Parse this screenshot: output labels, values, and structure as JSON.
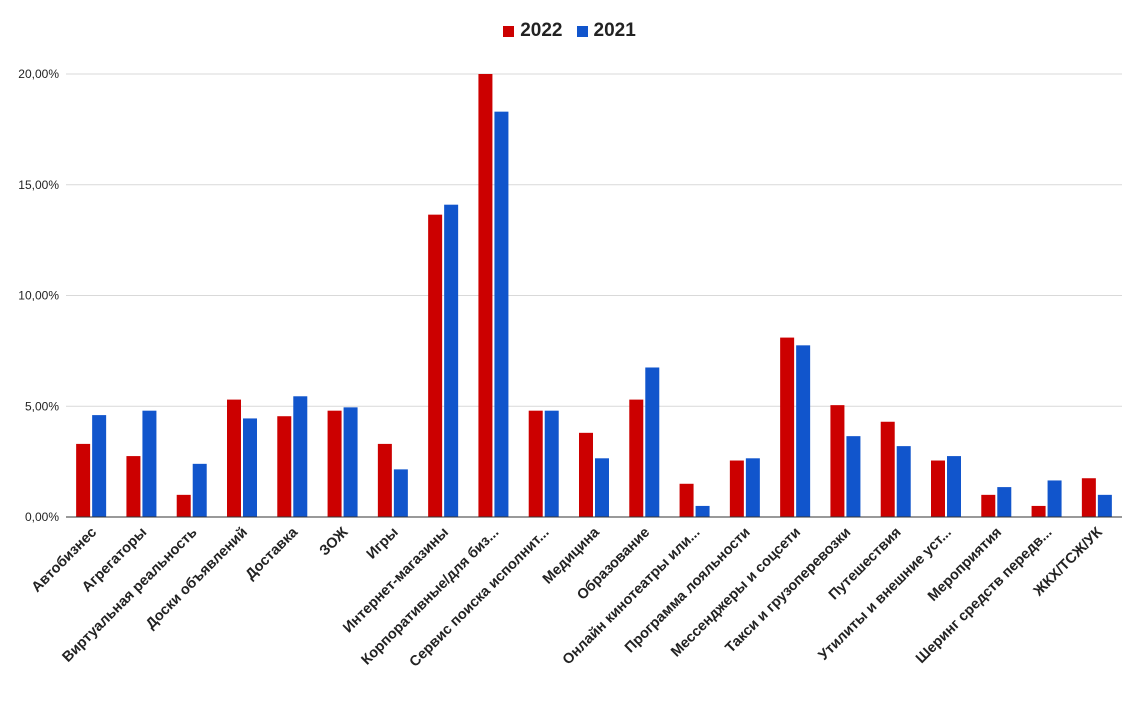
{
  "chart_data": {
    "type": "bar",
    "categories": [
      "Автобизнес",
      "Агрегаторы",
      "Виртуальная реальность",
      "Доски объявлений",
      "Доставка",
      "ЗОЖ",
      "Игры",
      "Интернет-магазины",
      "Корпоративные/для биз...",
      "Сервис поиска исполнит...",
      "Медицина",
      "Образование",
      "Онлайн кинотеатры или...",
      "Программа лояльности",
      "Мессенджеры и соцсети",
      "Такси и грузоперевозки",
      "Путешествия",
      "Утилиты и внешние уст...",
      "Мероприятия",
      "Шеринг средств передв...",
      "ЖКХ/ТСЖ/УК"
    ],
    "series": [
      {
        "name": "2022",
        "color": "#cc0000",
        "values": [
          3.3,
          2.75,
          1.0,
          5.3,
          4.55,
          4.8,
          3.3,
          13.65,
          20.0,
          4.8,
          3.8,
          5.3,
          1.5,
          2.55,
          8.1,
          5.05,
          4.3,
          2.55,
          1.0,
          0.5,
          1.75
        ]
      },
      {
        "name": "2021",
        "color": "#1155cc",
        "values": [
          4.6,
          4.8,
          2.4,
          4.45,
          5.45,
          4.95,
          2.15,
          14.1,
          18.3,
          4.8,
          2.65,
          6.75,
          0.5,
          2.65,
          7.75,
          3.65,
          3.2,
          2.75,
          1.35,
          1.65,
          1.0
        ]
      }
    ],
    "yticks": [
      "0,00%",
      "5,00%",
      "10,00%",
      "15,00%",
      "20,00%"
    ],
    "ylim": [
      0,
      20
    ],
    "ylabel": "",
    "xlabel": "",
    "title": "",
    "legend": "top-center",
    "grid": true
  }
}
